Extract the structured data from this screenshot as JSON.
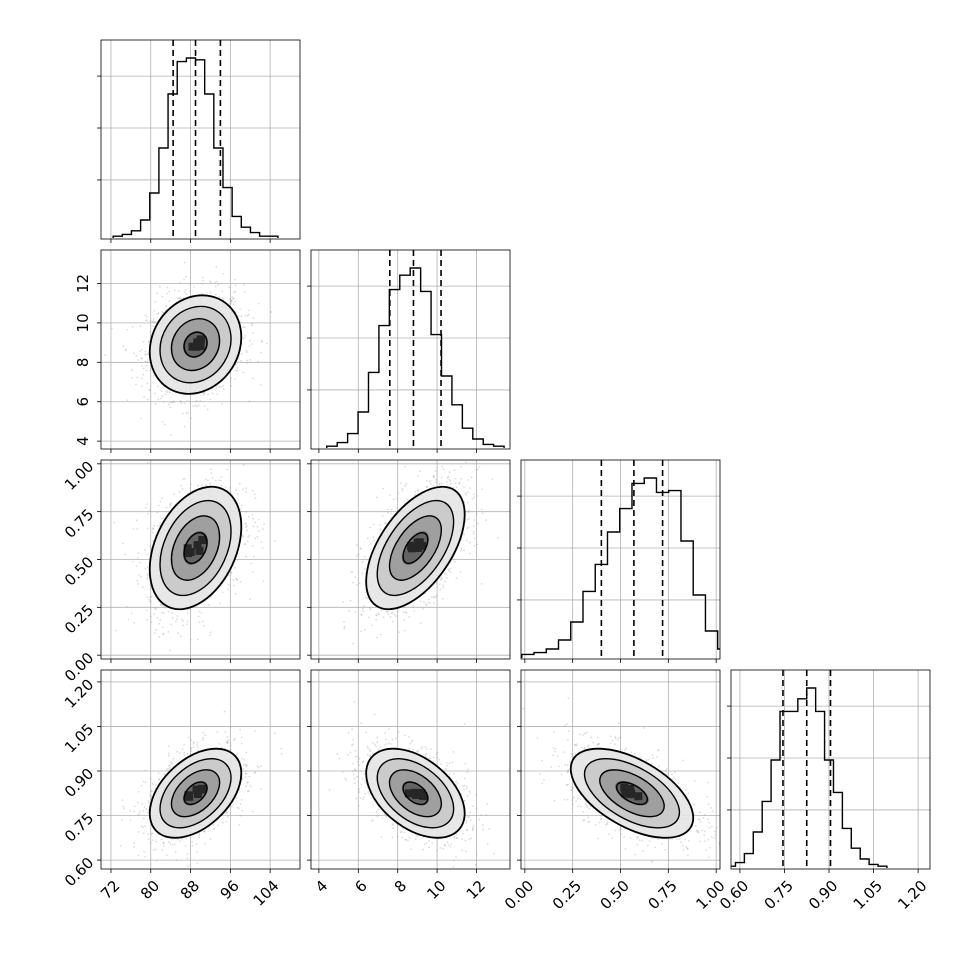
{
  "chart_data": {
    "type": "corner",
    "parameters": [
      {
        "ticks": [
          72,
          80,
          88,
          96,
          104
        ],
        "tick_labels": [
          "72",
          "80",
          "88",
          "96",
          "104"
        ],
        "range": [
          70,
          110
        ],
        "quantiles": [
          84.5,
          89.0,
          94.0
        ],
        "mean": 89.0,
        "sd": 4.6
      },
      {
        "ticks": [
          4,
          6,
          8,
          10,
          12
        ],
        "tick_labels": [
          "4",
          "6",
          "8",
          "10",
          "12"
        ],
        "range": [
          3.6,
          13.7
        ],
        "quantiles": [
          7.6,
          8.8,
          10.2
        ],
        "mean": 8.9,
        "sd": 1.25
      },
      {
        "ticks": [
          0.0,
          0.25,
          0.5,
          0.75,
          1.0
        ],
        "tick_labels": [
          "0.00",
          "0.25",
          "0.50",
          "0.75",
          "1.00"
        ],
        "range": [
          -0.02,
          1.02
        ],
        "quantiles": [
          0.4,
          0.57,
          0.72
        ],
        "mean": 0.56,
        "sd": 0.16
      },
      {
        "ticks": [
          0.6,
          0.75,
          0.9,
          1.05,
          1.2
        ],
        "tick_labels": [
          "0.60",
          "0.75",
          "0.90",
          "1.05",
          "1.20"
        ],
        "range": [
          0.57,
          1.24
        ],
        "quantiles": [
          0.745,
          0.825,
          0.905
        ],
        "mean": 0.825,
        "sd": 0.075
      }
    ],
    "correlations": {
      "1-0": 0.15,
      "2-0": 0.35,
      "2-1": 0.55,
      "3-0": 0.45,
      "3-1": -0.45,
      "3-2": -0.55
    },
    "histograms": [
      [
        0.01,
        0.02,
        0.04,
        0.1,
        0.25,
        0.5,
        0.8,
        0.98,
        1.0,
        0.99,
        0.8,
        0.5,
        0.28,
        0.12,
        0.06,
        0.03,
        0.01,
        0.01
      ],
      [
        0.01,
        0.03,
        0.08,
        0.2,
        0.42,
        0.68,
        0.88,
        0.96,
        1.0,
        0.87,
        0.63,
        0.4,
        0.24,
        0.11,
        0.05,
        0.02,
        0.01
      ],
      [
        0.02,
        0.03,
        0.05,
        0.1,
        0.2,
        0.37,
        0.52,
        0.7,
        0.83,
        0.97,
        1.0,
        0.92,
        0.93,
        0.65,
        0.35,
        0.15,
        0.05,
        0.02
      ],
      [
        0.01,
        0.03,
        0.08,
        0.2,
        0.37,
        0.6,
        0.87,
        0.87,
        0.94,
        1.0,
        0.87,
        0.6,
        0.42,
        0.22,
        0.11,
        0.05,
        0.02,
        0.01
      ]
    ],
    "grid": true
  }
}
